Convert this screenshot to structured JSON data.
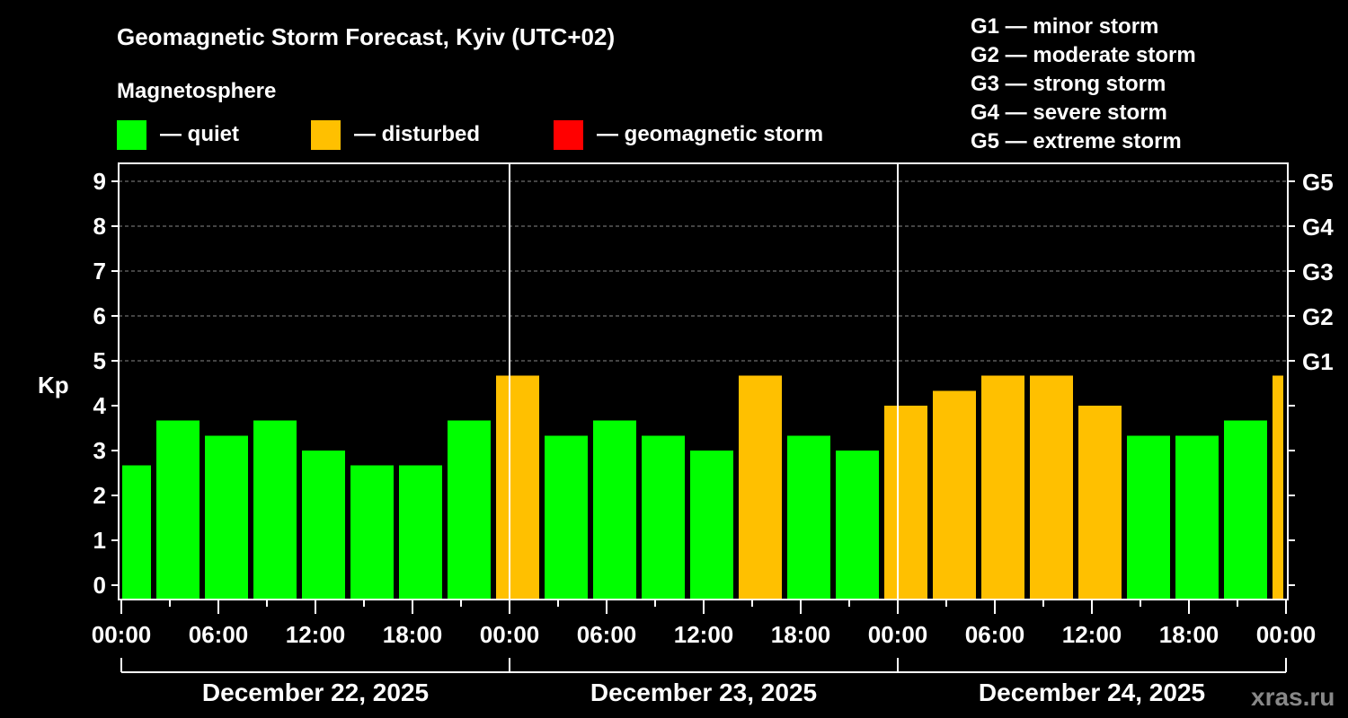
{
  "chart_data": {
    "type": "bar",
    "title": "Geomagnetic Storm Forecast, Kyiv (UTC+02)",
    "legend_title": "Magnetosphere",
    "legend": [
      {
        "label": "— quiet",
        "color": "#00ff00"
      },
      {
        "label": "— disturbed",
        "color": "#ffc000"
      },
      {
        "label": "— geomagnetic storm",
        "color": "#ff0000"
      }
    ],
    "storm_scale": [
      "G1 — minor storm",
      "G2 — moderate storm",
      "G3 — strong storm",
      "G4 — severe storm",
      "G5 — extreme storm"
    ],
    "ylabel": "Kp",
    "ylim": [
      -0.33,
      9.4
    ],
    "yticks": [
      "0",
      "1",
      "2",
      "3",
      "4",
      "5",
      "6",
      "7",
      "8",
      "9"
    ],
    "right_ticks": [
      {
        "kp": 5,
        "label": "G1"
      },
      {
        "kp": 6,
        "label": "G2"
      },
      {
        "kp": 7,
        "label": "G3"
      },
      {
        "kp": 8,
        "label": "G4"
      },
      {
        "kp": 9,
        "label": "G5"
      }
    ],
    "xticks": [
      "00:00",
      "06:00",
      "12:00",
      "18:00",
      "00:00",
      "06:00",
      "12:00",
      "18:00",
      "00:00",
      "06:00",
      "12:00",
      "18:00",
      "00:00"
    ],
    "days": [
      "December 22, 2025",
      "December 23, 2025",
      "December 24, 2025"
    ],
    "interval_hours": 3,
    "first_bar_start_hour": -1,
    "values": [
      2.67,
      3.67,
      3.33,
      3.67,
      3.0,
      2.67,
      2.67,
      3.67,
      4.67,
      3.33,
      3.67,
      3.33,
      3.0,
      4.67,
      3.33,
      3.0,
      4.0,
      4.33,
      4.67,
      4.67,
      4.0,
      3.33,
      3.33,
      3.67,
      4.67
    ],
    "status": [
      "quiet",
      "quiet",
      "quiet",
      "quiet",
      "quiet",
      "quiet",
      "quiet",
      "quiet",
      "disturbed",
      "quiet",
      "quiet",
      "quiet",
      "quiet",
      "disturbed",
      "quiet",
      "quiet",
      "disturbed",
      "disturbed",
      "disturbed",
      "disturbed",
      "disturbed",
      "quiet",
      "quiet",
      "quiet",
      "disturbed"
    ],
    "colors": {
      "quiet": "#00ff00",
      "disturbed": "#ffc000",
      "storm": "#ff0000"
    },
    "grid": true
  },
  "watermark": "xras.ru"
}
